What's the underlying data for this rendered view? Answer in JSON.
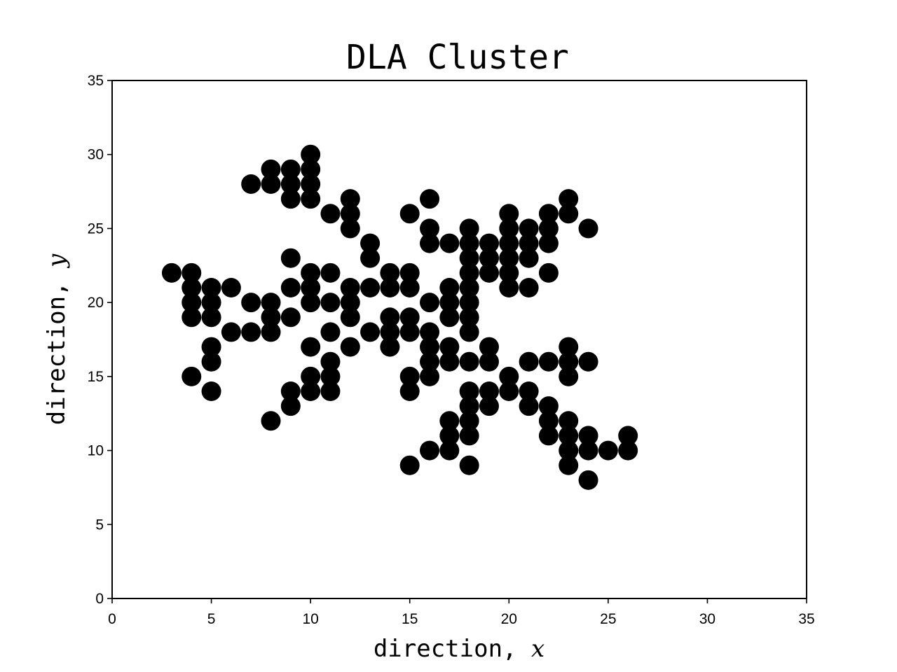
{
  "chart_data": {
    "type": "scatter",
    "title": "DLA Cluster",
    "xlabel": {
      "prefix": "direction, ",
      "var": "x"
    },
    "ylabel": {
      "prefix": "direction, ",
      "var": "y"
    },
    "xlim": [
      0,
      35
    ],
    "ylim": [
      0,
      35
    ],
    "xticks": [
      0,
      5,
      10,
      15,
      20,
      25,
      30,
      35
    ],
    "yticks": [
      0,
      5,
      10,
      15,
      20,
      25,
      30,
      35
    ],
    "grid": false,
    "legend": "none",
    "marker_color": "#000000",
    "marker_shape": "circle",
    "points": [
      [
        3,
        22
      ],
      [
        4,
        22
      ],
      [
        4,
        21
      ],
      [
        4,
        20
      ],
      [
        4,
        19
      ],
      [
        4,
        15
      ],
      [
        5,
        21
      ],
      [
        5,
        20
      ],
      [
        5,
        19
      ],
      [
        5,
        17
      ],
      [
        5,
        16
      ],
      [
        5,
        14
      ],
      [
        6,
        21
      ],
      [
        6,
        18
      ],
      [
        7,
        28
      ],
      [
        7,
        20
      ],
      [
        7,
        18
      ],
      [
        8,
        29
      ],
      [
        8,
        28
      ],
      [
        8,
        20
      ],
      [
        8,
        19
      ],
      [
        8,
        18
      ],
      [
        8,
        12
      ],
      [
        9,
        29
      ],
      [
        9,
        28
      ],
      [
        9,
        27
      ],
      [
        9,
        23
      ],
      [
        9,
        21
      ],
      [
        9,
        19
      ],
      [
        9,
        14
      ],
      [
        9,
        13
      ],
      [
        10,
        30
      ],
      [
        10,
        29
      ],
      [
        10,
        28
      ],
      [
        10,
        27
      ],
      [
        10,
        22
      ],
      [
        10,
        21
      ],
      [
        10,
        20
      ],
      [
        10,
        17
      ],
      [
        10,
        15
      ],
      [
        10,
        14
      ],
      [
        11,
        26
      ],
      [
        11,
        22
      ],
      [
        11,
        20
      ],
      [
        11,
        18
      ],
      [
        11,
        16
      ],
      [
        11,
        15
      ],
      [
        11,
        14
      ],
      [
        12,
        27
      ],
      [
        12,
        26
      ],
      [
        12,
        25
      ],
      [
        12,
        21
      ],
      [
        12,
        20
      ],
      [
        12,
        19
      ],
      [
        12,
        17
      ],
      [
        13,
        24
      ],
      [
        13,
        23
      ],
      [
        13,
        21
      ],
      [
        13,
        18
      ],
      [
        14,
        22
      ],
      [
        14,
        21
      ],
      [
        14,
        19
      ],
      [
        14,
        18
      ],
      [
        14,
        17
      ],
      [
        15,
        26
      ],
      [
        15,
        22
      ],
      [
        15,
        21
      ],
      [
        15,
        19
      ],
      [
        15,
        18
      ],
      [
        15,
        15
      ],
      [
        15,
        14
      ],
      [
        15,
        9
      ],
      [
        16,
        27
      ],
      [
        16,
        25
      ],
      [
        16,
        24
      ],
      [
        16,
        20
      ],
      [
        16,
        18
      ],
      [
        16,
        17
      ],
      [
        16,
        16
      ],
      [
        16,
        15
      ],
      [
        16,
        10
      ],
      [
        17,
        24
      ],
      [
        17,
        21
      ],
      [
        17,
        20
      ],
      [
        17,
        19
      ],
      [
        17,
        17
      ],
      [
        17,
        16
      ],
      [
        17,
        12
      ],
      [
        17,
        11
      ],
      [
        17,
        10
      ],
      [
        18,
        25
      ],
      [
        18,
        24
      ],
      [
        18,
        23
      ],
      [
        18,
        22
      ],
      [
        18,
        21
      ],
      [
        18,
        20
      ],
      [
        18,
        19
      ],
      [
        18,
        18
      ],
      [
        18,
        16
      ],
      [
        18,
        14
      ],
      [
        18,
        13
      ],
      [
        18,
        12
      ],
      [
        18,
        11
      ],
      [
        18,
        9
      ],
      [
        19,
        24
      ],
      [
        19,
        23
      ],
      [
        19,
        22
      ],
      [
        19,
        17
      ],
      [
        19,
        16
      ],
      [
        19,
        14
      ],
      [
        19,
        13
      ],
      [
        20,
        26
      ],
      [
        20,
        25
      ],
      [
        20,
        24
      ],
      [
        20,
        23
      ],
      [
        20,
        22
      ],
      [
        20,
        21
      ],
      [
        20,
        15
      ],
      [
        20,
        14
      ],
      [
        21,
        25
      ],
      [
        21,
        24
      ],
      [
        21,
        23
      ],
      [
        21,
        21
      ],
      [
        21,
        16
      ],
      [
        21,
        14
      ],
      [
        21,
        13
      ],
      [
        22,
        26
      ],
      [
        22,
        25
      ],
      [
        22,
        24
      ],
      [
        22,
        22
      ],
      [
        22,
        16
      ],
      [
        22,
        13
      ],
      [
        22,
        12
      ],
      [
        22,
        11
      ],
      [
        23,
        27
      ],
      [
        23,
        26
      ],
      [
        23,
        17
      ],
      [
        23,
        16
      ],
      [
        23,
        15
      ],
      [
        23,
        12
      ],
      [
        23,
        11
      ],
      [
        23,
        10
      ],
      [
        23,
        9
      ],
      [
        24,
        25
      ],
      [
        24,
        16
      ],
      [
        24,
        11
      ],
      [
        24,
        10
      ],
      [
        24,
        8
      ],
      [
        25,
        10
      ],
      [
        26,
        11
      ],
      [
        26,
        10
      ]
    ]
  }
}
